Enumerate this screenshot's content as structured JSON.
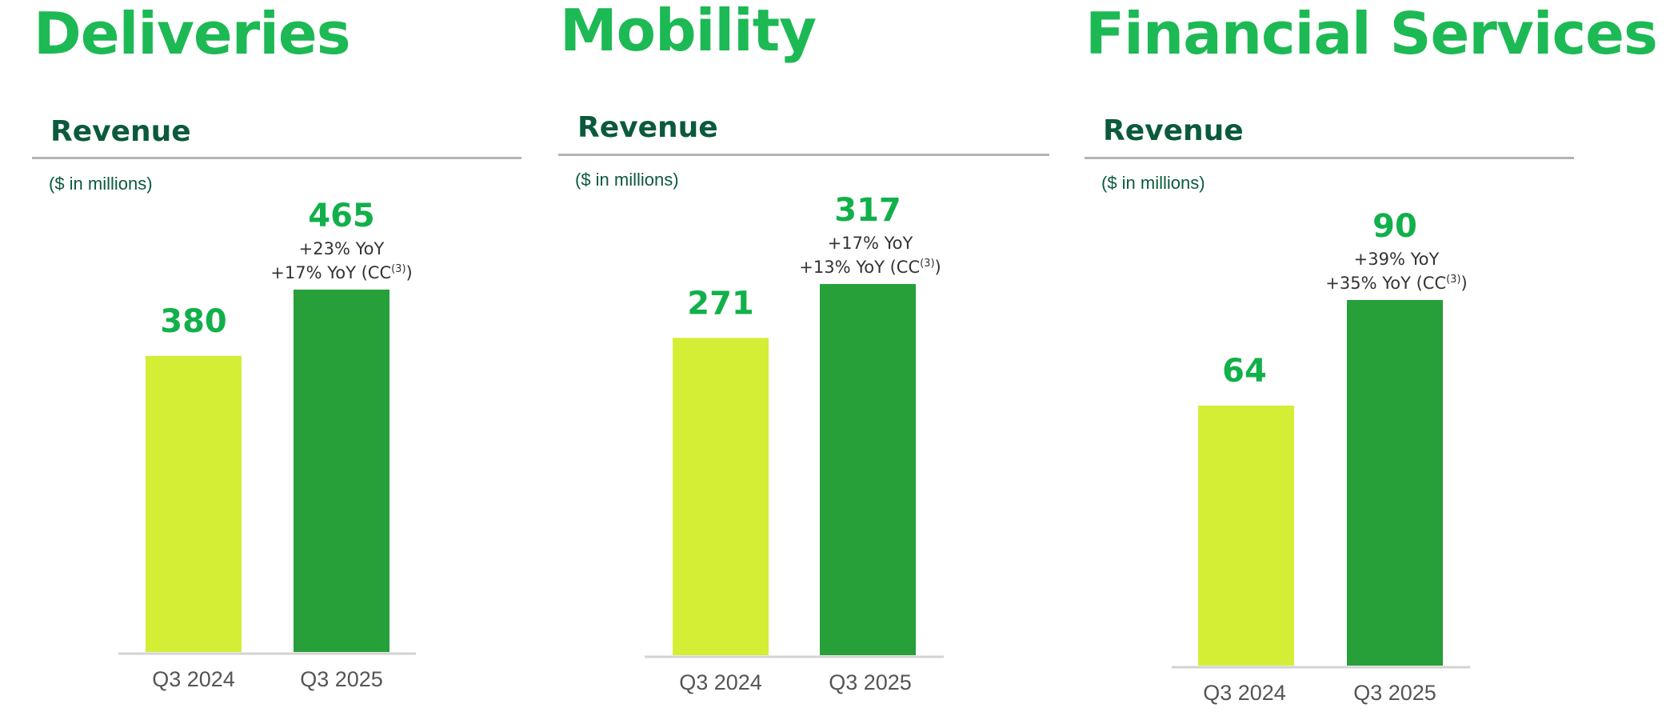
{
  "colors": {
    "title": "#1DB954",
    "subtitle": "#0B5A3C",
    "value_label": "#12B04A",
    "bar_2024": "#D4EE36",
    "bar_2025": "#27A03A",
    "divider": "#B4B4B4",
    "axis": "#D3D3D3",
    "annotation": "#333333",
    "category": "#555555"
  },
  "chart_data": [
    {
      "type": "bar",
      "title": "Deliveries",
      "subtitle": "Revenue",
      "units": "($ in millions)",
      "categories": [
        "Q3 2024",
        "Q3 2025"
      ],
      "values": [
        380,
        465
      ],
      "value_labels": [
        "380",
        "465"
      ],
      "annotations": {
        "yoy": "+23% YoY",
        "cc": "+17% YoY (CC",
        "cc_sup": "(3)",
        "cc_close": ")"
      },
      "ylim": [
        0,
        465
      ]
    },
    {
      "type": "bar",
      "title": "Mobility",
      "subtitle": "Revenue",
      "units": "($ in millions)",
      "categories": [
        "Q3 2024",
        "Q3 2025"
      ],
      "values": [
        271,
        317
      ],
      "value_labels": [
        "271",
        "317"
      ],
      "annotations": {
        "yoy": "+17% YoY",
        "cc": "+13% YoY (CC",
        "cc_sup": "(3)",
        "cc_close": ")"
      },
      "ylim": [
        0,
        317
      ]
    },
    {
      "type": "bar",
      "title": "Financial Services",
      "subtitle": "Revenue",
      "units": "($ in millions)",
      "categories": [
        "Q3 2024",
        "Q3 2025"
      ],
      "values": [
        64,
        90
      ],
      "value_labels": [
        "64",
        "90"
      ],
      "annotations": {
        "yoy": "+39% YoY",
        "cc": "+35% YoY (CC",
        "cc_sup": "(3)",
        "cc_close": ")"
      },
      "ylim": [
        0,
        90
      ]
    }
  ]
}
